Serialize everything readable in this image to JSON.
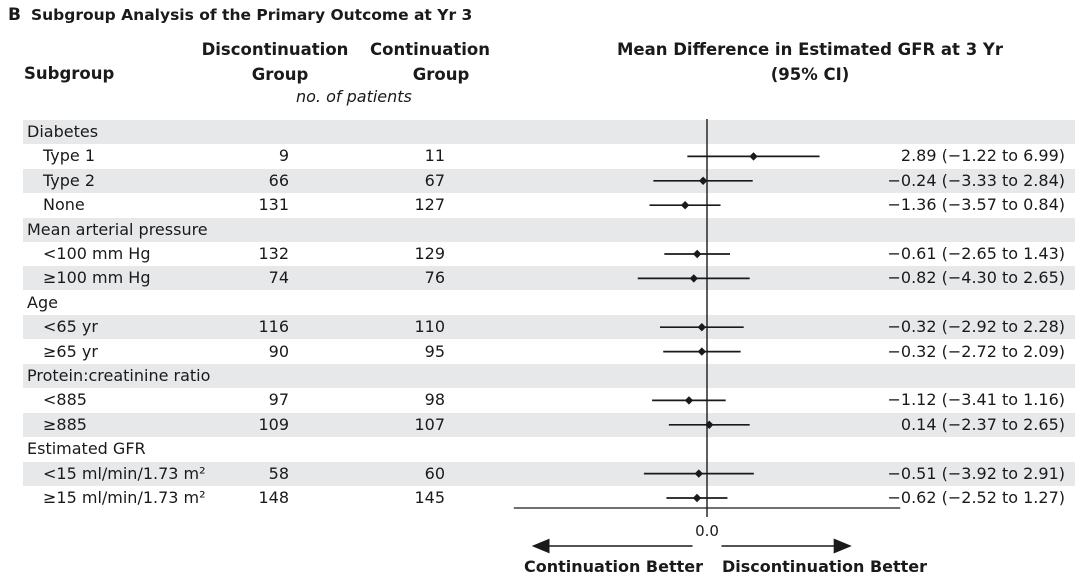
{
  "panel_letter": "B",
  "title": "Subgroup Analysis of the Primary Outcome at Yr 3",
  "header": {
    "subgroup": "Subgroup",
    "discontinuation": [
      "Discontinuation",
      "Group"
    ],
    "continuation": [
      "Continuation",
      "Group"
    ],
    "difference": [
      "Mean Difference in Estimated GFR at 3 Yr",
      "(95% CI)"
    ],
    "units_note": "no. of patients"
  },
  "axis": {
    "zero_label": "0.0",
    "left_label": "Continuation Better",
    "right_label": "Discontinuation Better"
  },
  "chart_data": {
    "type": "forest",
    "title": "Subgroup Analysis of the Primary Outcome at Yr 3",
    "xlabel": "Mean Difference in Estimated GFR at 3 Yr (95% CI)",
    "reference_line": 0.0,
    "xlim": [
      -12,
      12
    ],
    "rows": [
      {
        "label": "Diabetes",
        "heading": true,
        "shaded": true
      },
      {
        "label": "Type 1",
        "disc": "9",
        "cont": "11",
        "est": 2.89,
        "lo": -1.22,
        "hi": 6.99,
        "text": "2.89 (−1.22 to 6.99)",
        "shaded": false
      },
      {
        "label": "Type 2",
        "disc": "66",
        "cont": "67",
        "est": -0.24,
        "lo": -3.33,
        "hi": 2.84,
        "text": "−0.24 (−3.33 to 2.84)",
        "shaded": true
      },
      {
        "label": "None",
        "disc": "131",
        "cont": "127",
        "est": -1.36,
        "lo": -3.57,
        "hi": 0.84,
        "text": "−1.36 (−3.57 to 0.84)",
        "shaded": false
      },
      {
        "label": "Mean arterial pressure",
        "heading": true,
        "shaded": true
      },
      {
        "label": "<100 mm Hg",
        "disc": "132",
        "cont": "129",
        "est": -0.61,
        "lo": -2.65,
        "hi": 1.43,
        "text": "−0.61 (−2.65 to 1.43)",
        "shaded": false
      },
      {
        "label": "≥100 mm Hg",
        "disc": "74",
        "cont": "76",
        "est": -0.82,
        "lo": -4.3,
        "hi": 2.65,
        "text": "−0.82 (−4.30 to 2.65)",
        "shaded": true
      },
      {
        "label": "Age",
        "heading": true,
        "shaded": false
      },
      {
        "label": "<65 yr",
        "disc": "116",
        "cont": "110",
        "est": -0.32,
        "lo": -2.92,
        "hi": 2.28,
        "text": "−0.32 (−2.92 to 2.28)",
        "shaded": true
      },
      {
        "label": "≥65 yr",
        "disc": "90",
        "cont": "95",
        "est": -0.32,
        "lo": -2.72,
        "hi": 2.09,
        "text": "−0.32 (−2.72 to 2.09)",
        "shaded": false
      },
      {
        "label": "Protein:creatinine ratio",
        "heading": true,
        "shaded": true
      },
      {
        "label": "<885",
        "disc": "97",
        "cont": "98",
        "est": -1.12,
        "lo": -3.41,
        "hi": 1.16,
        "text": "−1.12 (−3.41 to 1.16)",
        "shaded": false
      },
      {
        "label": "≥885",
        "disc": "109",
        "cont": "107",
        "est": 0.14,
        "lo": -2.37,
        "hi": 2.65,
        "text": "0.14 (−2.37 to 2.65)",
        "shaded": true
      },
      {
        "label": "Estimated GFR",
        "heading": true,
        "shaded": false
      },
      {
        "label": "<15 ml/min/1.73 m²",
        "disc": "58",
        "cont": "60",
        "est": -0.51,
        "lo": -3.92,
        "hi": 2.91,
        "text": "−0.51 (−3.92 to 2.91)",
        "shaded": true
      },
      {
        "label": "≥15 ml/min/1.73 m²",
        "disc": "148",
        "cont": "145",
        "est": -0.62,
        "lo": -2.52,
        "hi": 1.27,
        "text": "−0.62 (−2.52 to 1.27)",
        "shaded": false
      }
    ]
  }
}
